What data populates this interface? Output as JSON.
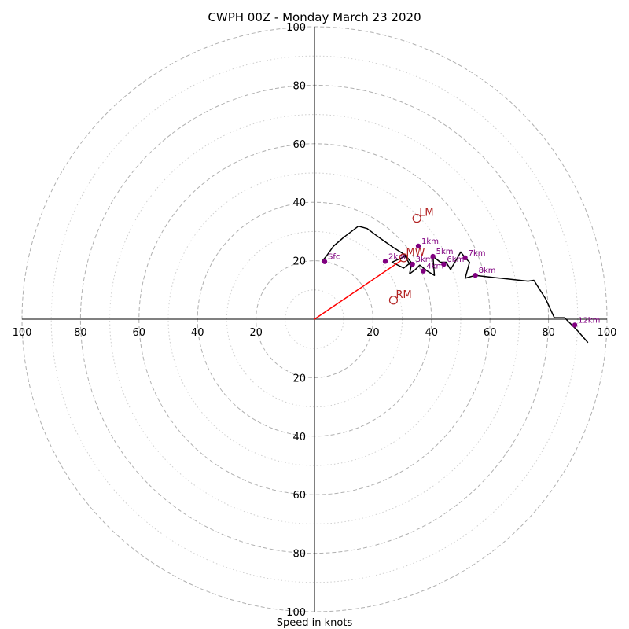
{
  "chart_data": {
    "type": "hodograph",
    "title": "CWPH 00Z - Monday March 23 2020",
    "xlabel": "Speed in knots",
    "xlim": [
      -100,
      100
    ],
    "ylim": [
      -100,
      100
    ],
    "ring_major": [
      20,
      40,
      60,
      80,
      100
    ],
    "ring_minor": [
      10,
      30,
      50,
      70,
      90
    ],
    "x_ticks": [
      {
        "value": -100,
        "label": "100"
      },
      {
        "value": -80,
        "label": "80"
      },
      {
        "value": -60,
        "label": "60"
      },
      {
        "value": -40,
        "label": "40"
      },
      {
        "value": -20,
        "label": "20"
      },
      {
        "value": 20,
        "label": "20"
      },
      {
        "value": 40,
        "label": "40"
      },
      {
        "value": 60,
        "label": "60"
      },
      {
        "value": 80,
        "label": "80"
      },
      {
        "value": 100,
        "label": "100"
      }
    ],
    "y_ticks": [
      {
        "value": 100,
        "label": "100"
      },
      {
        "value": 80,
        "label": "80"
      },
      {
        "value": 60,
        "label": "60"
      },
      {
        "value": 40,
        "label": "40"
      },
      {
        "value": 20,
        "label": "20"
      },
      {
        "value": -20,
        "label": "20"
      },
      {
        "value": -40,
        "label": "40"
      },
      {
        "value": -60,
        "label": "60"
      },
      {
        "value": -80,
        "label": "80"
      },
      {
        "value": -100,
        "label": "100"
      }
    ],
    "hodograph_line": [
      [
        2.5,
        19.7
      ],
      [
        4,
        21.5
      ],
      [
        6.5,
        25
      ],
      [
        10,
        28
      ],
      [
        15,
        31.8
      ],
      [
        18,
        31
      ],
      [
        22,
        28
      ],
      [
        27,
        24.5
      ],
      [
        31,
        22
      ],
      [
        33,
        19.5
      ],
      [
        30.5,
        17.5
      ],
      [
        26.5,
        19.5
      ],
      [
        31,
        21.5
      ],
      [
        33,
        18
      ],
      [
        32.5,
        15.5
      ],
      [
        34.5,
        17
      ],
      [
        36,
        18.5
      ],
      [
        38.5,
        16.5
      ],
      [
        41,
        15
      ],
      [
        40.5,
        21.5
      ],
      [
        43,
        19.5
      ],
      [
        45,
        19.5
      ],
      [
        46.5,
        17
      ],
      [
        48,
        19.5
      ],
      [
        50,
        23
      ],
      [
        51.5,
        21
      ],
      [
        53,
        19.5
      ],
      [
        51.5,
        14
      ],
      [
        55,
        15
      ],
      [
        62,
        14.2
      ],
      [
        73,
        13
      ],
      [
        75,
        13.3
      ],
      [
        79,
        7
      ],
      [
        82,
        0.5
      ],
      [
        85.5,
        0.5
      ],
      [
        90,
        -4
      ],
      [
        93.5,
        -8
      ]
    ],
    "height_labels": [
      {
        "label": "Sfc",
        "u": 3.5,
        "v": 19.7
      },
      {
        "label": "1km",
        "u": 35.5,
        "v": 25
      },
      {
        "label": "2km",
        "u": 24.2,
        "v": 19.8
      },
      {
        "label": "3km",
        "u": 33.5,
        "v": 18.8
      },
      {
        "label": "4km",
        "u": 37.2,
        "v": 16.5
      },
      {
        "label": "5km",
        "u": 40.5,
        "v": 21.5
      },
      {
        "label": "6km",
        "u": 44.2,
        "v": 18.8
      },
      {
        "label": "7km",
        "u": 51.5,
        "v": 21
      },
      {
        "label": "8km",
        "u": 55,
        "v": 15
      },
      {
        "label": "12km",
        "u": 89,
        "v": -2
      }
    ],
    "storm_motion_vector": {
      "from": [
        0,
        0
      ],
      "to": [
        29.5,
        20
      ]
    },
    "motion_markers": [
      {
        "label": "LM",
        "u": 35,
        "v": 34.5
      },
      {
        "label": "MW",
        "u": 30.5,
        "v": 21
      },
      {
        "label": "RM",
        "u": 27,
        "v": 6.5
      }
    ],
    "colors": {
      "hodograph": "#000000",
      "height_points": "#800080",
      "motion_markers": "#b22222",
      "vector": "#ff0000",
      "rings": "#b0b0b0"
    }
  }
}
